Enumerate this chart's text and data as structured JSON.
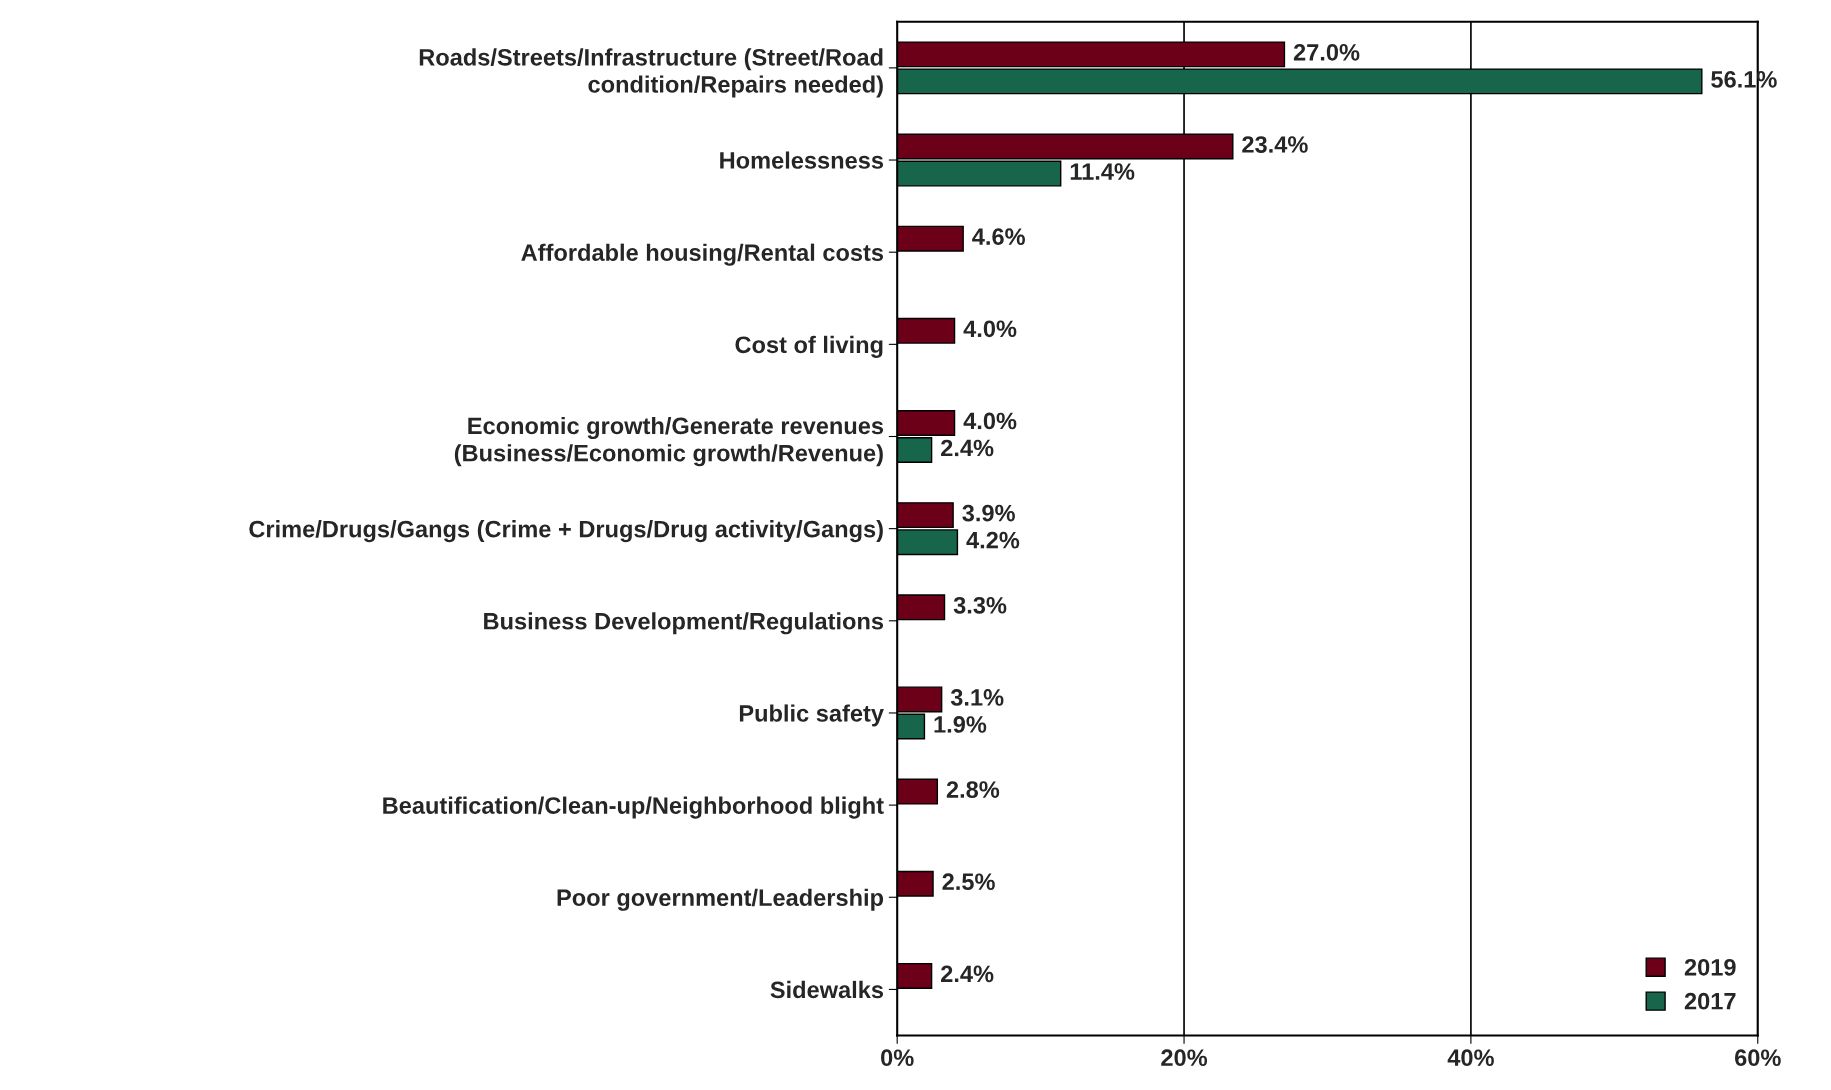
{
  "chart_data": {
    "type": "bar",
    "orientation": "horizontal",
    "categories": [
      "Roads/Streets/Infrastructure (Street/Road\ncondition/Repairs needed)",
      "Homelessness",
      "Affordable housing/Rental costs",
      "Cost of living",
      "Economic growth/Generate revenues\n(Business/Economic growth/Revenue)",
      "Crime/Drugs/Gangs (Crime + Drugs/Drug activity/Gangs)",
      "Business Development/Regulations",
      "Public safety",
      "Beautification/Clean-up/Neighborhood blight",
      "Poor government/Leadership",
      "Sidewalks"
    ],
    "series": [
      {
        "name": "2019",
        "color": "#6d0019",
        "values": [
          27.0,
          23.4,
          4.6,
          4.0,
          4.0,
          3.9,
          3.3,
          3.1,
          2.8,
          2.5,
          2.4
        ],
        "value_labels": [
          "27.0%",
          "23.4%",
          "4.6%",
          "4.0%",
          "4.0%",
          "3.9%",
          "3.3%",
          "3.1%",
          "2.8%",
          "2.5%",
          "2.4%"
        ]
      },
      {
        "name": "2017",
        "color": "#17654a",
        "values": [
          56.1,
          11.4,
          null,
          null,
          2.4,
          4.2,
          null,
          1.9,
          null,
          null,
          null
        ],
        "value_labels": [
          "56.1%",
          "11.4%",
          null,
          null,
          "2.4%",
          "4.2%",
          null,
          "1.9%",
          null,
          null,
          null
        ]
      }
    ],
    "xlim": [
      0,
      60
    ],
    "xticks": [
      {
        "value": 0,
        "label": "0%"
      },
      {
        "value": 20,
        "label": "20%"
      },
      {
        "value": 40,
        "label": "40%"
      },
      {
        "value": 60,
        "label": "60%"
      }
    ],
    "grid": "x",
    "legend": "bottom right"
  }
}
